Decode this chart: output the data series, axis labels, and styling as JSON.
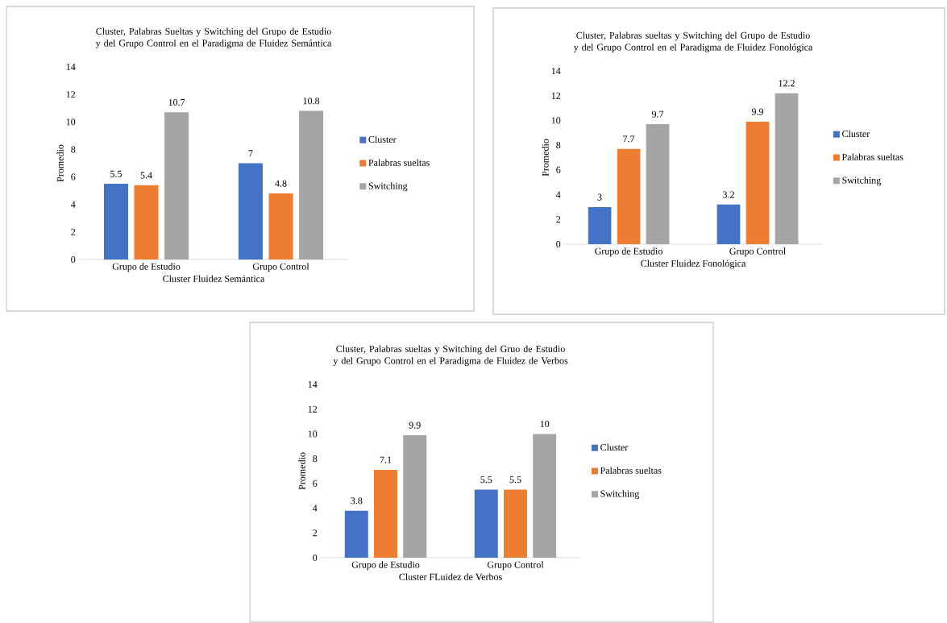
{
  "chart_data": [
    {
      "type": "bar",
      "title": "Cluster, Palabras Sueltas y Switching del Grupo de Estudio y del Grupo Control en el Paradigma de Fluidez Semántica",
      "xlabel": "Cluster Fluidez Semántica",
      "ylabel": "Promedio",
      "categories": [
        "Grupo de Estudio",
        "Grupo Control"
      ],
      "series": [
        {
          "name": "Cluster",
          "color": "#4472c4",
          "values": [
            5.5,
            7
          ]
        },
        {
          "name": "Palabras sueltas",
          "color": "#ed7d31",
          "values": [
            5.4,
            4.8
          ]
        },
        {
          "name": "Switching",
          "color": "#a5a5a5",
          "values": [
            10.7,
            10.8
          ]
        }
      ],
      "ylim": [
        0,
        14
      ],
      "yticks": [
        0,
        2,
        4,
        6,
        8,
        10,
        12,
        14
      ],
      "data_labels": true,
      "legend": "right"
    },
    {
      "type": "bar",
      "title": "Cluster, Palabras sueltas y Switching del Grupo de Estudio y del Grupo Control en el Paradigma de Fluidez Fonológica",
      "xlabel": "Cluster Fluidez Fonológica",
      "ylabel": "Promedio",
      "categories": [
        "Grupo de Estudio",
        "Grupo Control"
      ],
      "series": [
        {
          "name": "Cluster",
          "color": "#4472c4",
          "values": [
            3,
            3.2
          ]
        },
        {
          "name": "Palabras sueltas",
          "color": "#ed7d31",
          "values": [
            7.7,
            9.9
          ]
        },
        {
          "name": "Switching",
          "color": "#a5a5a5",
          "values": [
            9.7,
            12.2
          ]
        }
      ],
      "ylim": [
        0,
        14
      ],
      "yticks": [
        0,
        2,
        4,
        6,
        8,
        10,
        12,
        14
      ],
      "data_labels": true,
      "legend": "right"
    },
    {
      "type": "bar",
      "title": "Cluster, Palabras sueltas y Switching del Gruo de Estudio y del Grupo Control en el Paradigma de Fluidez de Verbos",
      "xlabel": "Cluster FLuidez de Verbos",
      "ylabel": "Promedio",
      "categories": [
        "Grupo de Estudio",
        "Grupo Control"
      ],
      "series": [
        {
          "name": "Cluster",
          "color": "#4472c4",
          "values": [
            3.8,
            5.5
          ]
        },
        {
          "name": "Palabras sueltas",
          "color": "#ed7d31",
          "values": [
            7.1,
            5.5
          ]
        },
        {
          "name": "Switching",
          "color": "#a5a5a5",
          "values": [
            9.9,
            10
          ]
        }
      ],
      "ylim": [
        0,
        14
      ],
      "yticks": [
        0,
        2,
        4,
        6,
        8,
        10,
        12,
        14
      ],
      "data_labels": true,
      "legend": "right"
    }
  ]
}
